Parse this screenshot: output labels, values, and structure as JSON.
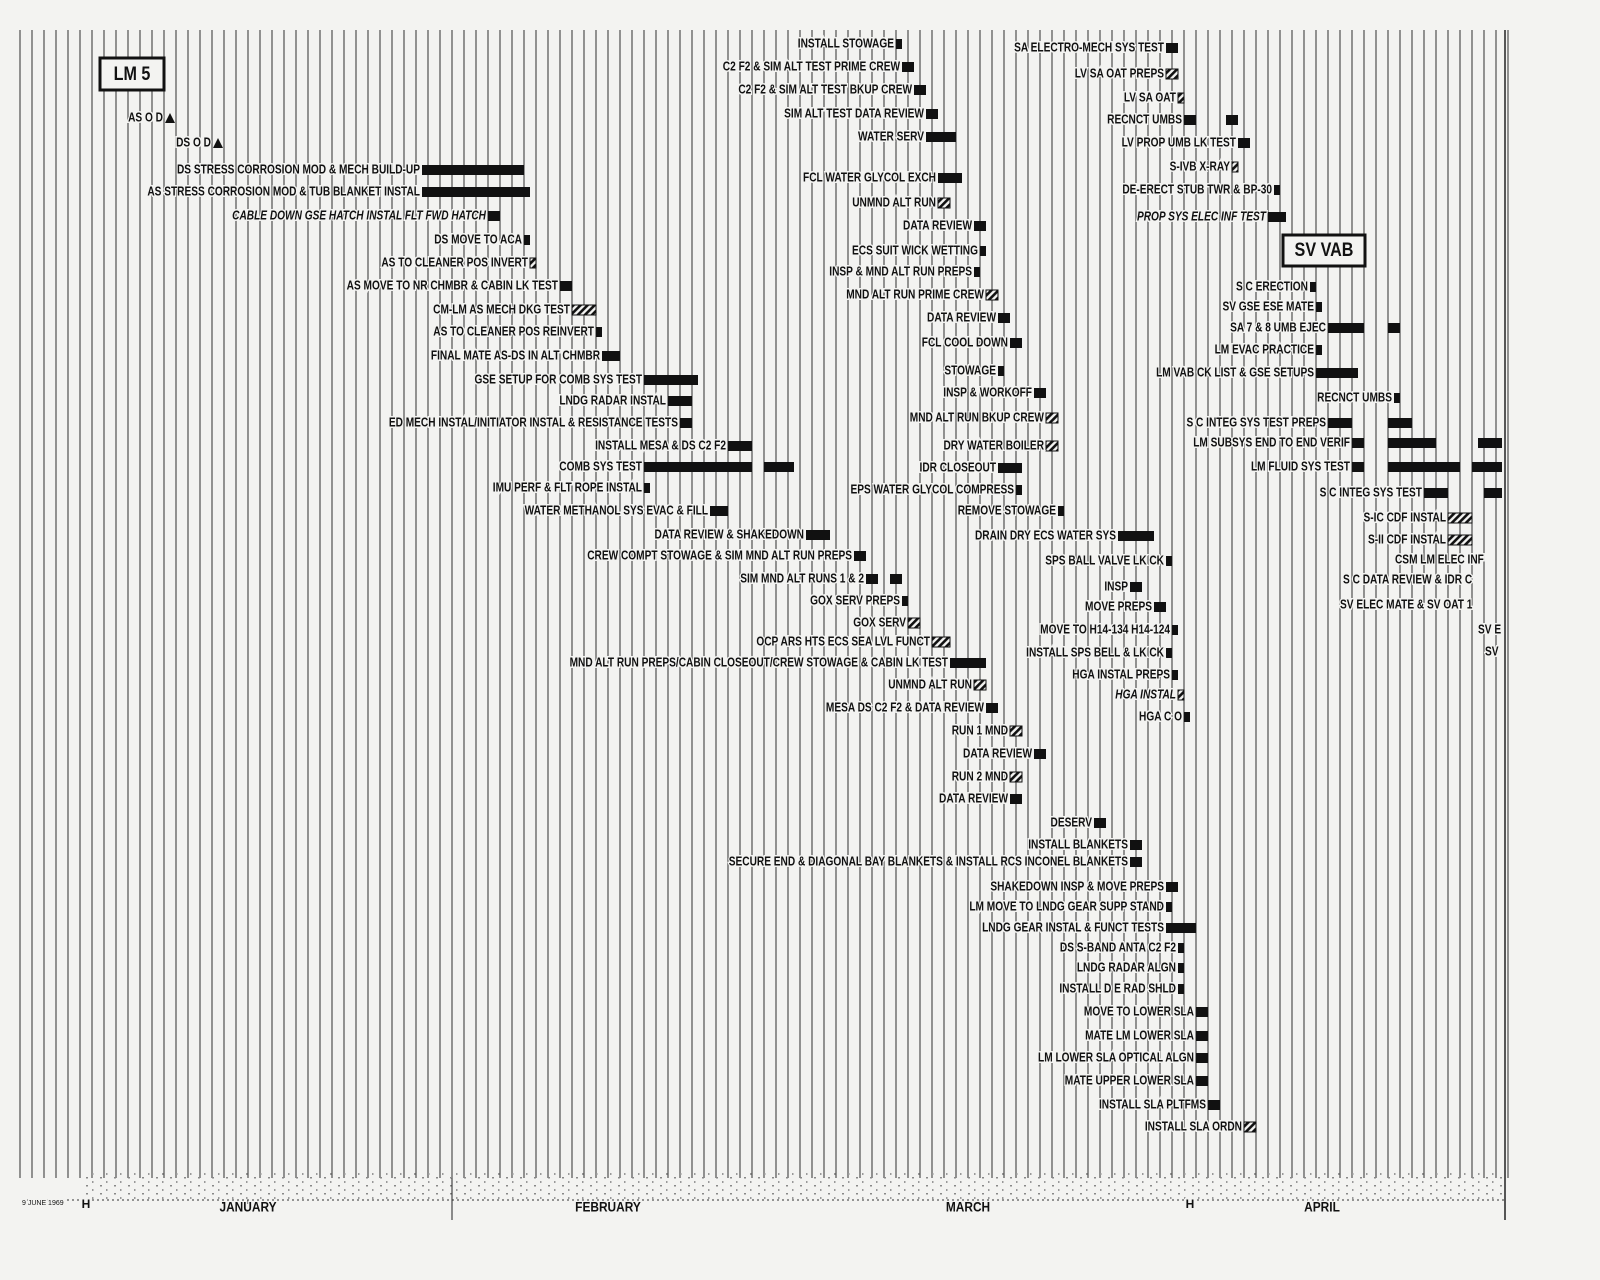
{
  "chart_data": {
    "type": "gantt",
    "xlim": [
      0,
      119
    ],
    "xticks": [
      {
        "value": 14,
        "label": "JANUARY"
      },
      {
        "value": 44,
        "label": "FEBRUARY"
      },
      {
        "value": 74,
        "label": "MARCH"
      },
      {
        "value": 103.5,
        "label": "APRIL"
      }
    ],
    "markers": [
      {
        "value": 0.5,
        "label": "H"
      },
      {
        "value": 92.5,
        "label": "H"
      }
    ],
    "footnote": "9 JUNE 1969",
    "annotations": [
      "LM 5",
      "SV VAB"
    ],
    "grid": true,
    "color": "#111111",
    "tasks": [
      {
        "name": "AS O D",
        "milestone": 7.5
      },
      {
        "name": "DS O D",
        "milestone": 11.5
      },
      {
        "name": "DS STRESS CORROSION MOD & MECH BUILD-UP",
        "bars": [
          [
            28.5,
            37
          ]
        ]
      },
      {
        "name": "AS STRESS CORROSION MOD & TUB BLANKET INSTAL",
        "bars": [
          [
            28.5,
            37.5
          ]
        ]
      },
      {
        "name": "CABLE DOWN GSE HATCH INSTAL FLT FWD HATCH",
        "bars": [
          [
            34,
            35
          ]
        ],
        "italic": true
      },
      {
        "name": "DS MOVE TO ACA",
        "bars": [
          [
            37,
            37.5
          ]
        ]
      },
      {
        "name": "AS TO CLEANER POS INVERT",
        "bars": [
          [
            37.5,
            38
          ]
        ],
        "hatched": true
      },
      {
        "name": "AS MOVE TO NR CHMBR & CABIN LK TEST",
        "bars": [
          [
            40,
            41
          ]
        ]
      },
      {
        "name": "CM-LM AS MECH DKG TEST",
        "bars": [
          [
            41,
            43
          ]
        ],
        "hatched": true
      },
      {
        "name": "AS TO CLEANER POS REINVERT",
        "bars": [
          [
            43,
            43.5
          ]
        ]
      },
      {
        "name": "FINAL MATE AS-DS IN ALT CHMBR",
        "bars": [
          [
            43.5,
            45
          ]
        ]
      },
      {
        "name": "GSE SETUP FOR COMB SYS TEST",
        "bars": [
          [
            47,
            51.5
          ]
        ]
      },
      {
        "name": "LNDG RADAR INSTAL",
        "bars": [
          [
            49,
            51
          ]
        ]
      },
      {
        "name": "ED MECH INSTAL/INITIATOR INSTAL & RESISTANCE TESTS",
        "bars": [
          [
            50,
            51
          ]
        ]
      },
      {
        "name": "INSTALL MESA & DS C2 F2",
        "bars": [
          [
            54,
            56
          ]
        ]
      },
      {
        "name": "COMB SYS TEST",
        "bars": [
          [
            47,
            56
          ],
          [
            57,
            59.5
          ]
        ]
      },
      {
        "name": "IMU PERF & FLT ROPE INSTAL",
        "bars": [
          [
            47,
            47.5
          ]
        ]
      },
      {
        "name": "WATER METHANOL SYS EVAC & FILL",
        "bars": [
          [
            52.5,
            54
          ]
        ]
      },
      {
        "name": "DATA REVIEW & SHAKEDOWN",
        "bars": [
          [
            60.5,
            62.5
          ]
        ]
      },
      {
        "name": "CREW COMPT STOWAGE & SIM MND ALT RUN PREPS",
        "bars": [
          [
            64.5,
            65.5
          ]
        ]
      },
      {
        "name": "SIM MND ALT RUNS 1 & 2",
        "bars": [
          [
            65.5,
            66.5
          ],
          [
            67.5,
            68.5
          ]
        ]
      },
      {
        "name": "GOX SERV PREPS",
        "bars": [
          [
            68.5,
            69
          ]
        ]
      },
      {
        "name": "GOX SERV",
        "bars": [
          [
            69,
            70
          ]
        ],
        "hatched": true
      },
      {
        "name": "OCP ARS HTS ECS SEA LVL FUNCT",
        "bars": [
          [
            71,
            72.5
          ]
        ],
        "hatched": true
      },
      {
        "name": "MND ALT RUN PREPS/CABIN CLOSEOUT/CREW STOWAGE & CABIN LK TEST",
        "bars": [
          [
            72.5,
            75.5
          ]
        ]
      },
      {
        "name": "UNMND ALT RUN",
        "bars": [
          [
            74.5,
            75.5
          ]
        ],
        "hatched": true
      },
      {
        "name": "MESA DS C2 F2 & DATA REVIEW",
        "bars": [
          [
            75.5,
            76.5
          ]
        ]
      },
      {
        "name": "RUN 1 MND",
        "bars": [
          [
            77.5,
            78.5
          ]
        ],
        "hatched": true
      },
      {
        "name": "DATA REVIEW",
        "bars": [
          [
            79.5,
            80.5
          ]
        ]
      },
      {
        "name": "RUN 2 MND",
        "bars": [
          [
            77.5,
            78.5
          ]
        ],
        "hatched": true
      },
      {
        "name": "DATA REVIEW",
        "bars": [
          [
            77.5,
            78.5
          ]
        ]
      },
      {
        "name": "DESERV",
        "bars": [
          [
            84.5,
            85.5
          ]
        ]
      },
      {
        "name": "INSTALL BLANKETS",
        "bars": [
          [
            87.5,
            88.5
          ]
        ]
      },
      {
        "name": "SECURE END & DIAGONAL BAY BLANKETS & INSTALL RCS INCONEL BLANKETS",
        "bars": [
          [
            87.5,
            88.5
          ]
        ]
      },
      {
        "name": "SHAKEDOWN INSP & MOVE PREPS",
        "bars": [
          [
            90.5,
            91.5
          ]
        ]
      },
      {
        "name": "LM MOVE TO LNDG GEAR SUPP STAND",
        "bars": [
          [
            90.5,
            91
          ]
        ]
      },
      {
        "name": "LNDG GEAR INSTAL & FUNCT TESTS",
        "bars": [
          [
            90.5,
            93
          ]
        ]
      },
      {
        "name": "DS S-BAND ANTA C2 F2",
        "bars": [
          [
            91.5,
            92
          ]
        ]
      },
      {
        "name": "LNDG RADAR ALGN",
        "bars": [
          [
            91.5,
            92
          ]
        ]
      },
      {
        "name": "INSTALL D E RAD SHLD",
        "bars": [
          [
            91.5,
            92
          ]
        ]
      },
      {
        "name": "MOVE TO LOWER SLA",
        "bars": [
          [
            93,
            94
          ]
        ]
      },
      {
        "name": "MATE LM LOWER SLA",
        "bars": [
          [
            93,
            94
          ]
        ]
      },
      {
        "name": "LM LOWER SLA OPTICAL ALGN",
        "bars": [
          [
            93,
            94
          ]
        ]
      },
      {
        "name": "MATE UPPER LOWER SLA",
        "bars": [
          [
            93,
            94
          ]
        ]
      },
      {
        "name": "INSTALL SLA PLTFMS",
        "bars": [
          [
            94,
            95
          ]
        ]
      },
      {
        "name": "INSTALL SLA ORDN",
        "bars": [
          [
            97,
            98
          ]
        ],
        "hatched": true
      },
      {
        "name": "INSTALL STOWAGE",
        "bars": [
          [
            68,
            68.5
          ]
        ]
      },
      {
        "name": "C2 F2 & SIM ALT TEST PRIME CREW",
        "bars": [
          [
            68.5,
            69.5
          ]
        ]
      },
      {
        "name": "C2 F2 & SIM ALT TEST BKUP CREW",
        "bars": [
          [
            69.5,
            70.5
          ]
        ]
      },
      {
        "name": "SIM ALT TEST DATA REVIEW",
        "bars": [
          [
            70.5,
            71.5
          ]
        ]
      },
      {
        "name": "WATER SERV",
        "bars": [
          [
            70.5,
            73
          ]
        ]
      },
      {
        "name": "FCL WATER GLYCOL EXCH",
        "bars": [
          [
            71.5,
            73.5
          ]
        ]
      },
      {
        "name": "UNMND ALT RUN",
        "bars": [
          [
            71.5,
            72.5
          ]
        ],
        "hatched": true
      },
      {
        "name": "DATA REVIEW",
        "bars": [
          [
            74.5,
            75.5
          ]
        ]
      },
      {
        "name": "ECS SUIT WICK WETTING",
        "bars": [
          [
            75,
            75.5
          ]
        ]
      },
      {
        "name": "INSP & MND ALT RUN PREPS",
        "bars": [
          [
            74.5,
            75
          ]
        ]
      },
      {
        "name": "MND ALT RUN PRIME CREW",
        "bars": [
          [
            75.5,
            76.5
          ]
        ],
        "hatched": true
      },
      {
        "name": "DATA REVIEW",
        "bars": [
          [
            76.5,
            77.5
          ]
        ]
      },
      {
        "name": "FCL COOL DOWN",
        "bars": [
          [
            77.5,
            78.5
          ]
        ]
      },
      {
        "name": "STOWAGE",
        "bars": [
          [
            76.5,
            77
          ]
        ]
      },
      {
        "name": "INSP & WORKOFF",
        "bars": [
          [
            79.5,
            80.5
          ]
        ]
      },
      {
        "name": "MND ALT RUN BKUP CREW",
        "bars": [
          [
            80.5,
            81.5
          ]
        ],
        "hatched": true
      },
      {
        "name": "DRY WATER BOILER",
        "bars": [
          [
            80.5,
            81.5
          ]
        ],
        "hatched": true
      },
      {
        "name": "IDR CLOSEOUT",
        "bars": [
          [
            76.5,
            78.5
          ]
        ]
      },
      {
        "name": "EPS WATER GLYCOL COMPRESS",
        "bars": [
          [
            78,
            78.5
          ]
        ]
      },
      {
        "name": "REMOVE STOWAGE",
        "bars": [
          [
            81.5,
            82
          ]
        ]
      },
      {
        "name": "DRAIN DRY ECS WATER SYS",
        "bars": [
          [
            86.5,
            89.5
          ]
        ]
      },
      {
        "name": "SPS BALL VALVE LK CK",
        "bars": [
          [
            90.5,
            91
          ]
        ]
      },
      {
        "name": "INSP",
        "bars": [
          [
            87.5,
            88.5
          ]
        ]
      },
      {
        "name": "MOVE PREPS",
        "bars": [
          [
            89.5,
            90.5
          ]
        ]
      },
      {
        "name": "MOVE TO H14-134 H14-124",
        "bars": [
          [
            91,
            91.5
          ]
        ]
      },
      {
        "name": "INSTALL SPS BELL & LK CK",
        "bars": [
          [
            90.5,
            91
          ]
        ]
      },
      {
        "name": "HGA INSTAL PREPS",
        "bars": [
          [
            91,
            91.5
          ]
        ]
      },
      {
        "name": "HGA INSTAL",
        "bars": [
          [
            91.5,
            92
          ]
        ],
        "hatched": true,
        "italic": true
      },
      {
        "name": "HGA C O",
        "bars": [
          [
            92,
            92.5
          ]
        ]
      },
      {
        "name": "SA ELECTRO-MECH SYS TEST",
        "bars": [
          [
            90.5,
            91.5
          ]
        ]
      },
      {
        "name": "LV SA OAT PREPS",
        "bars": [
          [
            90.5,
            91.5
          ]
        ],
        "hatched": true
      },
      {
        "name": "LV SA OAT",
        "bars": [
          [
            91.5,
            92
          ]
        ],
        "hatched": true
      },
      {
        "name": "RECNCT UMBS",
        "bars": [
          [
            92,
            93
          ],
          [
            95.5,
            96.5
          ]
        ]
      },
      {
        "name": "LV PROP UMB LK TEST",
        "bars": [
          [
            96.5,
            97.5
          ]
        ]
      },
      {
        "name": "S-IVB X-RAY",
        "bars": [
          [
            96,
            96.5
          ]
        ],
        "hatched": true
      },
      {
        "name": "DE-ERECT STUB TWR & BP-30",
        "bars": [
          [
            99.5,
            100
          ]
        ]
      },
      {
        "name": "PROP SYS ELEC INF TEST",
        "bars": [
          [
            99,
            100.5
          ]
        ],
        "italic": true
      },
      {
        "name": "S C ERECTION",
        "bars": [
          [
            102.5,
            103
          ]
        ]
      },
      {
        "name": "SV GSE ESE MATE",
        "bars": [
          [
            103,
            103.5
          ]
        ]
      },
      {
        "name": "SA 7 & 8 UMB EJEC",
        "bars": [
          [
            104,
            107
          ],
          [
            109,
            110
          ]
        ]
      },
      {
        "name": "LM EVAC PRACTICE",
        "bars": [
          [
            103,
            103.5
          ]
        ]
      },
      {
        "name": "LM VAB CK LIST & GSE SETUPS",
        "bars": [
          [
            103,
            106.5
          ]
        ]
      },
      {
        "name": "RECNCT UMBS",
        "bars": [
          [
            109.5,
            110
          ]
        ]
      },
      {
        "name": "S C INTEG SYS TEST PREPS",
        "bars": [
          [
            104,
            106
          ],
          [
            109,
            111
          ]
        ]
      },
      {
        "name": "LM SUBSYS END TO END VERIF",
        "bars": [
          [
            106,
            107
          ],
          [
            109,
            113
          ],
          [
            116.5,
            118.5
          ]
        ]
      },
      {
        "name": "LM FLUID SYS TEST",
        "bars": [
          [
            106,
            107
          ],
          [
            109,
            115
          ],
          [
            116,
            118.5
          ]
        ]
      },
      {
        "name": "S C INTEG SYS TEST",
        "bars": [
          [
            112,
            114
          ],
          [
            117,
            118.5
          ]
        ]
      },
      {
        "name": "S-IC CDF INSTAL",
        "bars": [
          [
            114,
            116
          ]
        ],
        "hatched": true
      },
      {
        "name": "S-II CDF INSTAL",
        "bars": [
          [
            114,
            116
          ]
        ],
        "hatched": true
      },
      {
        "name": "CSM LM ELEC INF"
      },
      {
        "name": "S C DATA REVIEW & IDR C"
      },
      {
        "name": "SV ELEC MATE & SV OAT 1"
      },
      {
        "name": "SV E"
      },
      {
        "name": "SV"
      }
    ]
  }
}
